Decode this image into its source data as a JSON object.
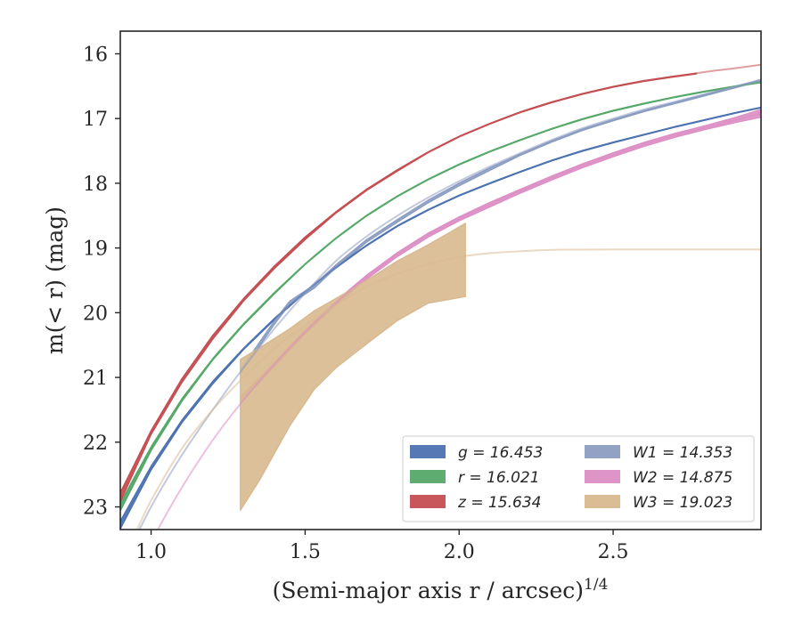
{
  "chart_data": {
    "type": "line",
    "xlabel": "(Semi-major axis r / arcsec)",
    "xlabel_exponent": "1/4",
    "ylabel": "m(< r) (mag)",
    "xlim": [
      0.9,
      2.98
    ],
    "ylim": [
      23.35,
      15.65
    ],
    "y_inverted": true,
    "xticks": [
      1.0,
      1.5,
      2.0,
      2.5
    ],
    "xtick_labels": [
      "1.0",
      "1.5",
      "2.0",
      "2.5"
    ],
    "yticks": [
      16,
      17,
      18,
      19,
      20,
      21,
      22,
      23
    ],
    "ytick_labels": [
      "16",
      "17",
      "18",
      "19",
      "20",
      "21",
      "22",
      "23"
    ],
    "grid": false,
    "legend_placement": "lower-right",
    "legend_columns": 2,
    "series": [
      {
        "name": "g = 16.453",
        "legend_label": "g = 16.453",
        "color": "#4c72b0",
        "fit_x": [
          0.9,
          1.0,
          1.1,
          1.2,
          1.3,
          1.4,
          1.5,
          1.6,
          1.7,
          1.8,
          1.9,
          2.0,
          2.1,
          2.2,
          2.3,
          2.4,
          2.5,
          2.6,
          2.7,
          2.8,
          2.9,
          2.98
        ],
        "fit_y": [
          23.28,
          22.4,
          21.68,
          21.08,
          20.56,
          20.1,
          19.68,
          19.3,
          18.96,
          18.66,
          18.41,
          18.19,
          18.0,
          17.82,
          17.65,
          17.5,
          17.37,
          17.25,
          17.13,
          17.02,
          16.91,
          16.83
        ],
        "band_x": [
          0.9,
          1.0,
          1.1,
          1.2,
          1.3,
          1.4,
          1.5,
          1.6,
          1.7,
          1.8,
          1.9,
          2.0,
          2.1,
          2.2,
          2.3,
          2.4,
          2.5,
          2.6,
          2.7,
          2.8,
          2.9,
          2.98
        ],
        "band_lo": [
          23.22,
          22.37,
          21.66,
          21.06,
          20.55,
          20.09,
          19.67,
          19.29,
          18.955,
          18.655,
          18.405,
          18.185,
          17.995,
          17.815,
          17.645,
          17.495,
          17.365,
          17.245,
          17.125,
          17.015,
          16.905,
          16.825
        ],
        "band_hi": [
          23.34,
          22.43,
          21.7,
          21.1,
          20.57,
          20.11,
          19.69,
          19.31,
          18.965,
          18.665,
          18.415,
          18.195,
          18.005,
          17.825,
          17.655,
          17.505,
          17.375,
          17.255,
          17.135,
          17.025,
          16.915,
          16.835
        ]
      },
      {
        "name": "r = 16.021",
        "legend_label": "r = 16.021",
        "color": "#55a868",
        "fit_x": [
          0.9,
          1.0,
          1.1,
          1.2,
          1.3,
          1.4,
          1.5,
          1.6,
          1.7,
          1.8,
          1.9,
          2.0,
          2.1,
          2.2,
          2.3,
          2.4,
          2.5,
          2.6,
          2.7,
          2.8,
          2.9,
          2.98
        ],
        "fit_y": [
          23.0,
          22.1,
          21.35,
          20.72,
          20.18,
          19.7,
          19.25,
          18.85,
          18.5,
          18.2,
          17.94,
          17.71,
          17.51,
          17.33,
          17.16,
          17.01,
          16.88,
          16.77,
          16.67,
          16.58,
          16.5,
          16.44
        ],
        "band_x": [
          0.9,
          1.0,
          1.1,
          1.2,
          1.3,
          1.4,
          1.5,
          1.6,
          1.7,
          1.8,
          1.9,
          2.0,
          2.1,
          2.2,
          2.3,
          2.4,
          2.5,
          2.6,
          2.7,
          2.8,
          2.9,
          2.98
        ],
        "band_lo": [
          22.94,
          22.07,
          21.33,
          20.71,
          20.17,
          19.69,
          19.245,
          18.845,
          18.495,
          18.195,
          17.935,
          17.705,
          17.505,
          17.325,
          17.155,
          17.005,
          16.875,
          16.765,
          16.665,
          16.575,
          16.495,
          16.435
        ],
        "band_hi": [
          23.06,
          22.13,
          21.37,
          20.73,
          20.19,
          19.71,
          19.255,
          18.855,
          18.505,
          18.205,
          17.945,
          17.715,
          17.515,
          17.335,
          17.165,
          17.015,
          16.885,
          16.775,
          16.675,
          16.585,
          16.505,
          16.445
        ]
      },
      {
        "name": "z = 15.634",
        "legend_label": "z = 15.634",
        "color": "#c44e52",
        "fit_x": [
          0.9,
          1.0,
          1.1,
          1.2,
          1.3,
          1.4,
          1.5,
          1.6,
          1.7,
          1.8,
          1.9,
          2.0,
          2.1,
          2.2,
          2.3,
          2.4,
          2.5,
          2.6,
          2.7,
          2.8,
          2.9,
          2.98
        ],
        "fit_y": [
          22.85,
          21.85,
          21.05,
          20.38,
          19.8,
          19.3,
          18.85,
          18.45,
          18.1,
          17.8,
          17.52,
          17.28,
          17.08,
          16.9,
          16.75,
          16.62,
          16.51,
          16.42,
          16.35,
          16.28,
          16.22,
          16.17
        ],
        "band_x": [
          0.9,
          1.0,
          1.1,
          1.2,
          1.3,
          1.4,
          1.5,
          1.6,
          1.7,
          1.8,
          1.9,
          2.0,
          2.1,
          2.2,
          2.3,
          2.4,
          2.5,
          2.6,
          2.7,
          2.77
        ],
        "band_lo": [
          22.78,
          21.82,
          21.02,
          20.35,
          19.78,
          19.28,
          18.83,
          18.44,
          18.09,
          17.79,
          17.515,
          17.275,
          17.075,
          16.895,
          16.745,
          16.615,
          16.505,
          16.415,
          16.345,
          16.3
        ],
        "band_hi": [
          22.92,
          21.88,
          21.08,
          20.41,
          19.82,
          19.32,
          18.87,
          18.46,
          18.11,
          17.81,
          17.525,
          17.285,
          17.085,
          16.905,
          16.755,
          16.625,
          16.515,
          16.425,
          16.355,
          16.31
        ]
      },
      {
        "name": "W1 = 14.353",
        "legend_label": "W1 = 14.353",
        "color": "#8c9dc2",
        "fit_x": [
          0.9,
          1.0,
          1.1,
          1.2,
          1.3,
          1.4,
          1.5,
          1.6,
          1.7,
          1.8,
          1.9,
          2.0,
          2.1,
          2.2,
          2.3,
          2.4,
          2.5,
          2.6,
          2.7,
          2.8,
          2.9,
          2.98
        ],
        "fit_y": [
          23.95,
          23.0,
          22.2,
          21.5,
          20.85,
          20.25,
          19.7,
          19.2,
          18.82,
          18.5,
          18.22,
          17.97,
          17.74,
          17.53,
          17.33,
          17.15,
          17.0,
          16.86,
          16.74,
          16.62,
          16.5,
          16.4
        ],
        "band_x": [
          1.29,
          1.35,
          1.4,
          1.45,
          1.53,
          1.6,
          1.7,
          1.8,
          1.9,
          2.0,
          2.1,
          2.2,
          2.3,
          2.4,
          2.5,
          2.6,
          2.7,
          2.8,
          2.9,
          2.98
        ],
        "band_lo": [
          20.88,
          20.47,
          20.13,
          19.82,
          19.57,
          19.26,
          18.87,
          18.56,
          18.26,
          18.0,
          17.76,
          17.545,
          17.345,
          17.165,
          17.015,
          16.875,
          16.75,
          16.625,
          16.5,
          16.4
        ],
        "band_hi": [
          20.94,
          20.53,
          20.18,
          19.87,
          19.62,
          19.3,
          18.91,
          18.6,
          18.3,
          18.04,
          17.8,
          17.565,
          17.365,
          17.185,
          17.035,
          16.895,
          16.77,
          16.645,
          16.52,
          16.42
        ]
      },
      {
        "name": "W2 = 14.875",
        "legend_label": "W2 = 14.875",
        "color": "#dd8ec4",
        "fit_x": [
          0.95,
          1.0,
          1.1,
          1.2,
          1.3,
          1.4,
          1.5,
          1.6,
          1.7,
          1.8,
          1.9,
          2.0,
          2.1,
          2.2,
          2.3,
          2.4,
          2.5,
          2.6,
          2.7,
          2.8,
          2.9,
          2.98
        ],
        "fit_y": [
          24.1,
          23.55,
          22.7,
          21.97,
          21.35,
          20.8,
          20.3,
          19.85,
          19.45,
          19.1,
          18.8,
          18.55,
          18.33,
          18.12,
          17.92,
          17.73,
          17.56,
          17.4,
          17.26,
          17.14,
          17.02,
          16.92
        ],
        "band_x": [
          1.29,
          1.4,
          1.5,
          1.6,
          1.7,
          1.8,
          1.9,
          2.0,
          2.1,
          2.2,
          2.3,
          2.4,
          2.5,
          2.6,
          2.7,
          2.8,
          2.9,
          2.98
        ],
        "band_lo": [
          21.31,
          20.77,
          20.27,
          19.82,
          19.42,
          19.07,
          18.77,
          18.52,
          18.295,
          18.09,
          17.89,
          17.7,
          17.53,
          17.37,
          17.23,
          17.11,
          16.98,
          16.86
        ],
        "band_hi": [
          21.39,
          20.83,
          20.33,
          19.88,
          19.48,
          19.13,
          18.83,
          18.58,
          18.365,
          18.15,
          17.95,
          17.76,
          17.59,
          17.43,
          17.29,
          17.17,
          17.06,
          16.98
        ]
      },
      {
        "name": "W3 = 19.023",
        "legend_label": "W3 = 19.023",
        "color": "#d8b98f",
        "fit_x": [
          0.95,
          1.0,
          1.1,
          1.2,
          1.3,
          1.4,
          1.5,
          1.6,
          1.7,
          1.8,
          1.9,
          2.0,
          2.1,
          2.2,
          2.3,
          2.4,
          2.5,
          2.6,
          2.8,
          2.98
        ],
        "fit_y": [
          23.4,
          22.9,
          22.1,
          21.5,
          21.0,
          20.55,
          20.2,
          19.88,
          19.6,
          19.4,
          19.25,
          19.14,
          19.08,
          19.05,
          19.03,
          19.025,
          19.023,
          19.023,
          19.023,
          19.023
        ],
        "band_x": [
          1.29,
          1.35,
          1.45,
          1.53,
          1.6,
          1.7,
          1.8,
          1.9,
          2.02
        ],
        "band_lo": [
          23.05,
          22.6,
          21.75,
          21.18,
          20.85,
          20.48,
          20.12,
          19.85,
          19.75
        ],
        "band_hi": [
          20.72,
          20.55,
          20.25,
          19.97,
          19.78,
          19.5,
          19.2,
          18.95,
          18.62
        ]
      }
    ]
  }
}
